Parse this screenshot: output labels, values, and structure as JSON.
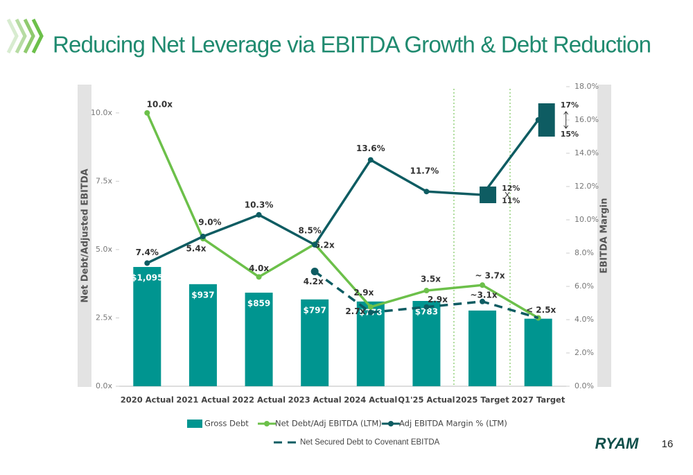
{
  "page_number": "16",
  "logo": "RYAM",
  "chart_data": {
    "type": "combo",
    "title": "Reducing Net Leverage via EBITDA Growth & Debt Reduction",
    "y_label": "Net Debt/Adjusted EBITDA",
    "y2_label": "EBITDA Margin",
    "categories": [
      "2020 Actual",
      "2021 Actual",
      "2022 Actual",
      "2023 Actual",
      "2024 Actual",
      "Q1'25 Actual",
      "2025 Target",
      "2027 Target"
    ],
    "ylim": [
      0,
      10.96
    ],
    "yticks": [
      {
        "value": 0,
        "label": "0.0x"
      },
      {
        "value": 2.5,
        "label": "2.5x"
      },
      {
        "value": 5,
        "label": "5.0x"
      },
      {
        "value": 7.5,
        "label": "7.5x"
      },
      {
        "value": 10,
        "label": "10.0x"
      }
    ],
    "y2lim": [
      0,
      18
    ],
    "y2ticks": [
      {
        "value": 0,
        "label": "0.0%"
      },
      {
        "value": 2,
        "label": "2.0%"
      },
      {
        "value": 4,
        "label": "4.0%"
      },
      {
        "value": 6,
        "label": "6.0%"
      },
      {
        "value": 8,
        "label": "8.0%"
      },
      {
        "value": 10,
        "label": "10.0%"
      },
      {
        "value": 12,
        "label": "12.0%"
      },
      {
        "value": 14,
        "label": "14.0%"
      },
      {
        "value": 16,
        "label": "16.0%"
      },
      {
        "value": 18,
        "label": "18.0%"
      }
    ],
    "bar_lim": [
      0,
      2750
    ],
    "series": [
      {
        "name": "Gross Debt",
        "kind": "bar",
        "color": "#009590",
        "values": [
          1095,
          937,
          859,
          797,
          778,
          783,
          695,
          620
        ],
        "value_labels": [
          "$1,095",
          "$937",
          "$859",
          "$797",
          "$778",
          "$783",
          null,
          null
        ]
      },
      {
        "name": "Net Debt/Adj EBITDA (LTM)",
        "kind": "line",
        "color": "#6cc04a",
        "values": [
          10.0,
          5.4,
          4.0,
          5.2,
          2.9,
          3.5,
          3.7,
          2.5
        ],
        "value_labels": [
          "10.0x",
          "5.4x",
          "4.0x",
          "5.2x",
          "2.9x",
          "3.5x",
          "~ 3.7x",
          "< 2.5x"
        ]
      },
      {
        "name": "Adj EBITDA Margin % (LTM)",
        "kind": "line",
        "axis": "y2",
        "color": "#0e5c62",
        "values": [
          7.4,
          9.0,
          10.3,
          8.5,
          13.6,
          11.7,
          11.5,
          16.0
        ],
        "value_labels": [
          "7.4%",
          "9.0%",
          "10.3%",
          "8.5%",
          "13.6%",
          "11.7%",
          null,
          null
        ],
        "ranges": [
          null,
          null,
          null,
          null,
          null,
          null,
          {
            "low": 11,
            "high": 12,
            "low_label": "11%",
            "high_label": "12%"
          },
          {
            "low": 15,
            "high": 17,
            "low_label": "15%",
            "high_label": "17%"
          }
        ]
      },
      {
        "name": "Net Secured Debt to Covenant EBITDA",
        "kind": "dashed",
        "color": "#0e5c62",
        "values": [
          null,
          null,
          null,
          4.2,
          2.7,
          2.9,
          3.1,
          2.5
        ],
        "value_labels": [
          null,
          null,
          null,
          "4.2x",
          "2.7x",
          "2.9x",
          "~3.1x",
          null
        ]
      }
    ]
  }
}
